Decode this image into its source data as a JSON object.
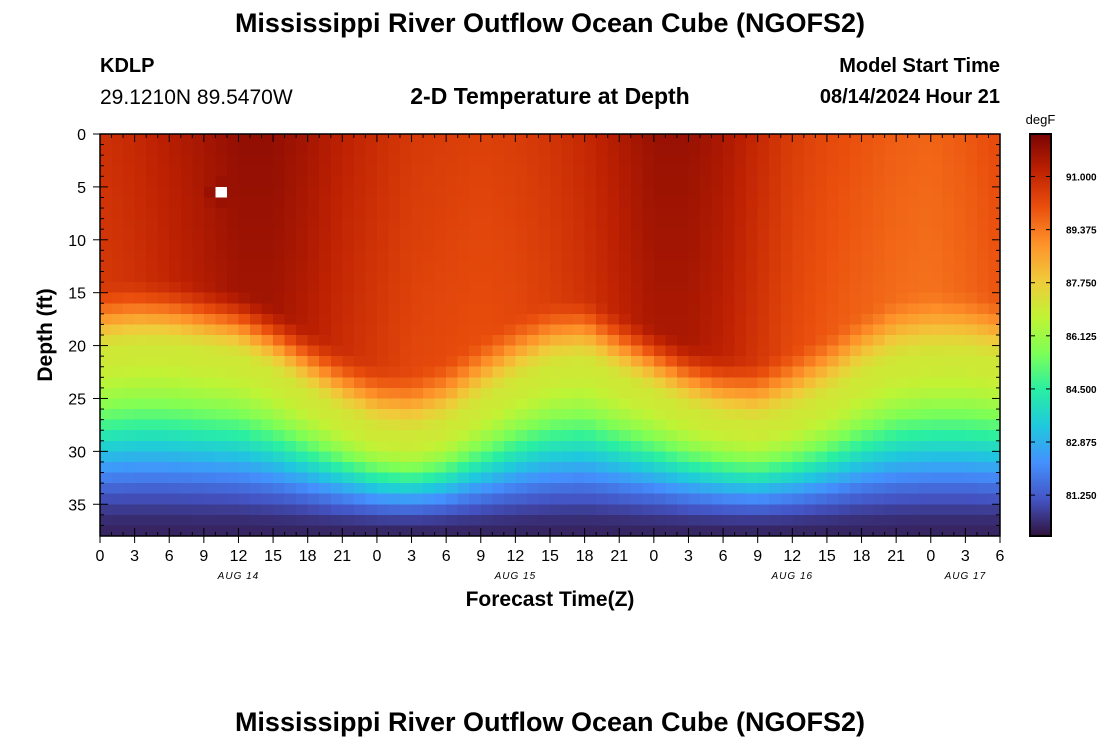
{
  "header": {
    "title": "Mississippi River Outflow Ocean Cube (NGOFS2)",
    "station_id": "KDLP",
    "coordinates": "29.1210N  89.5470W",
    "subtitle": "2-D Temperature at Depth",
    "model_start_label": "Model Start Time",
    "model_start_value": "08/14/2024 Hour 21"
  },
  "footer": {
    "title": "Mississippi River Outflow Ocean Cube (NGOFS2)"
  },
  "colors": {
    "colormap": [
      "#30123b",
      "#4454c4",
      "#4490fe",
      "#1fc8de",
      "#29efa2",
      "#7dff56",
      "#c1f334",
      "#f1ca3a",
      "#fe922a",
      "#ea4f0d",
      "#be2102",
      "#7a0403"
    ]
  },
  "chart_data": {
    "type": "heatmap",
    "xlabel": "Forecast Time(Z)",
    "ylabel": "Depth (ft)",
    "colorbar_label": "degF",
    "x_ticks": [
      "0",
      "3",
      "6",
      "9",
      "12",
      "15",
      "18",
      "21",
      "0",
      "3",
      "6",
      "9",
      "12",
      "15",
      "18",
      "21",
      "0",
      "3",
      "6",
      "9",
      "12",
      "15",
      "18",
      "21",
      "0",
      "3",
      "6"
    ],
    "date_labels": [
      {
        "label": "AUG 14",
        "hour": 12
      },
      {
        "label": "AUG 15",
        "hour": 36
      },
      {
        "label": "AUG 16",
        "hour": 60
      },
      {
        "label": "AUG 17",
        "hour": 75
      }
    ],
    "x_range_hours": [
      0,
      78
    ],
    "y_ticks": [
      "0",
      "5",
      "10",
      "15",
      "20",
      "25",
      "30",
      "35"
    ],
    "y_range_ft": [
      0,
      38
    ],
    "y_inverted": true,
    "colorbar_ticks": [
      "91.000",
      "89.375",
      "87.750",
      "86.125",
      "84.500",
      "82.875",
      "81.250"
    ],
    "value_range_degF": [
      80.0,
      92.3
    ],
    "surface_temp_degF": [
      90.8,
      91.0,
      91.3,
      91.6,
      91.9,
      91.9,
      91.6,
      91.2,
      90.9,
      90.6,
      90.5,
      90.4,
      90.5,
      90.7,
      91.0,
      91.4,
      91.8,
      91.8,
      91.5,
      91.0,
      90.5,
      90.2,
      90.0,
      89.8,
      89.7,
      89.9,
      90.2
    ],
    "mixed_layer_depth_ft": [
      17.0,
      16.5,
      16.5,
      17.0,
      17.5,
      19.0,
      21.0,
      23.0,
      24.5,
      25.0,
      24.0,
      22.0,
      20.0,
      18.5,
      18.0,
      19.5,
      21.0,
      22.5,
      23.5,
      24.0,
      23.0,
      21.5,
      19.5,
      18.0,
      17.5,
      17.5,
      18.0
    ],
    "bottom_temp_degF": 80.3,
    "max_column": {
      "hour": 10,
      "depth_ft": 5,
      "value_degF": 92.3
    }
  }
}
